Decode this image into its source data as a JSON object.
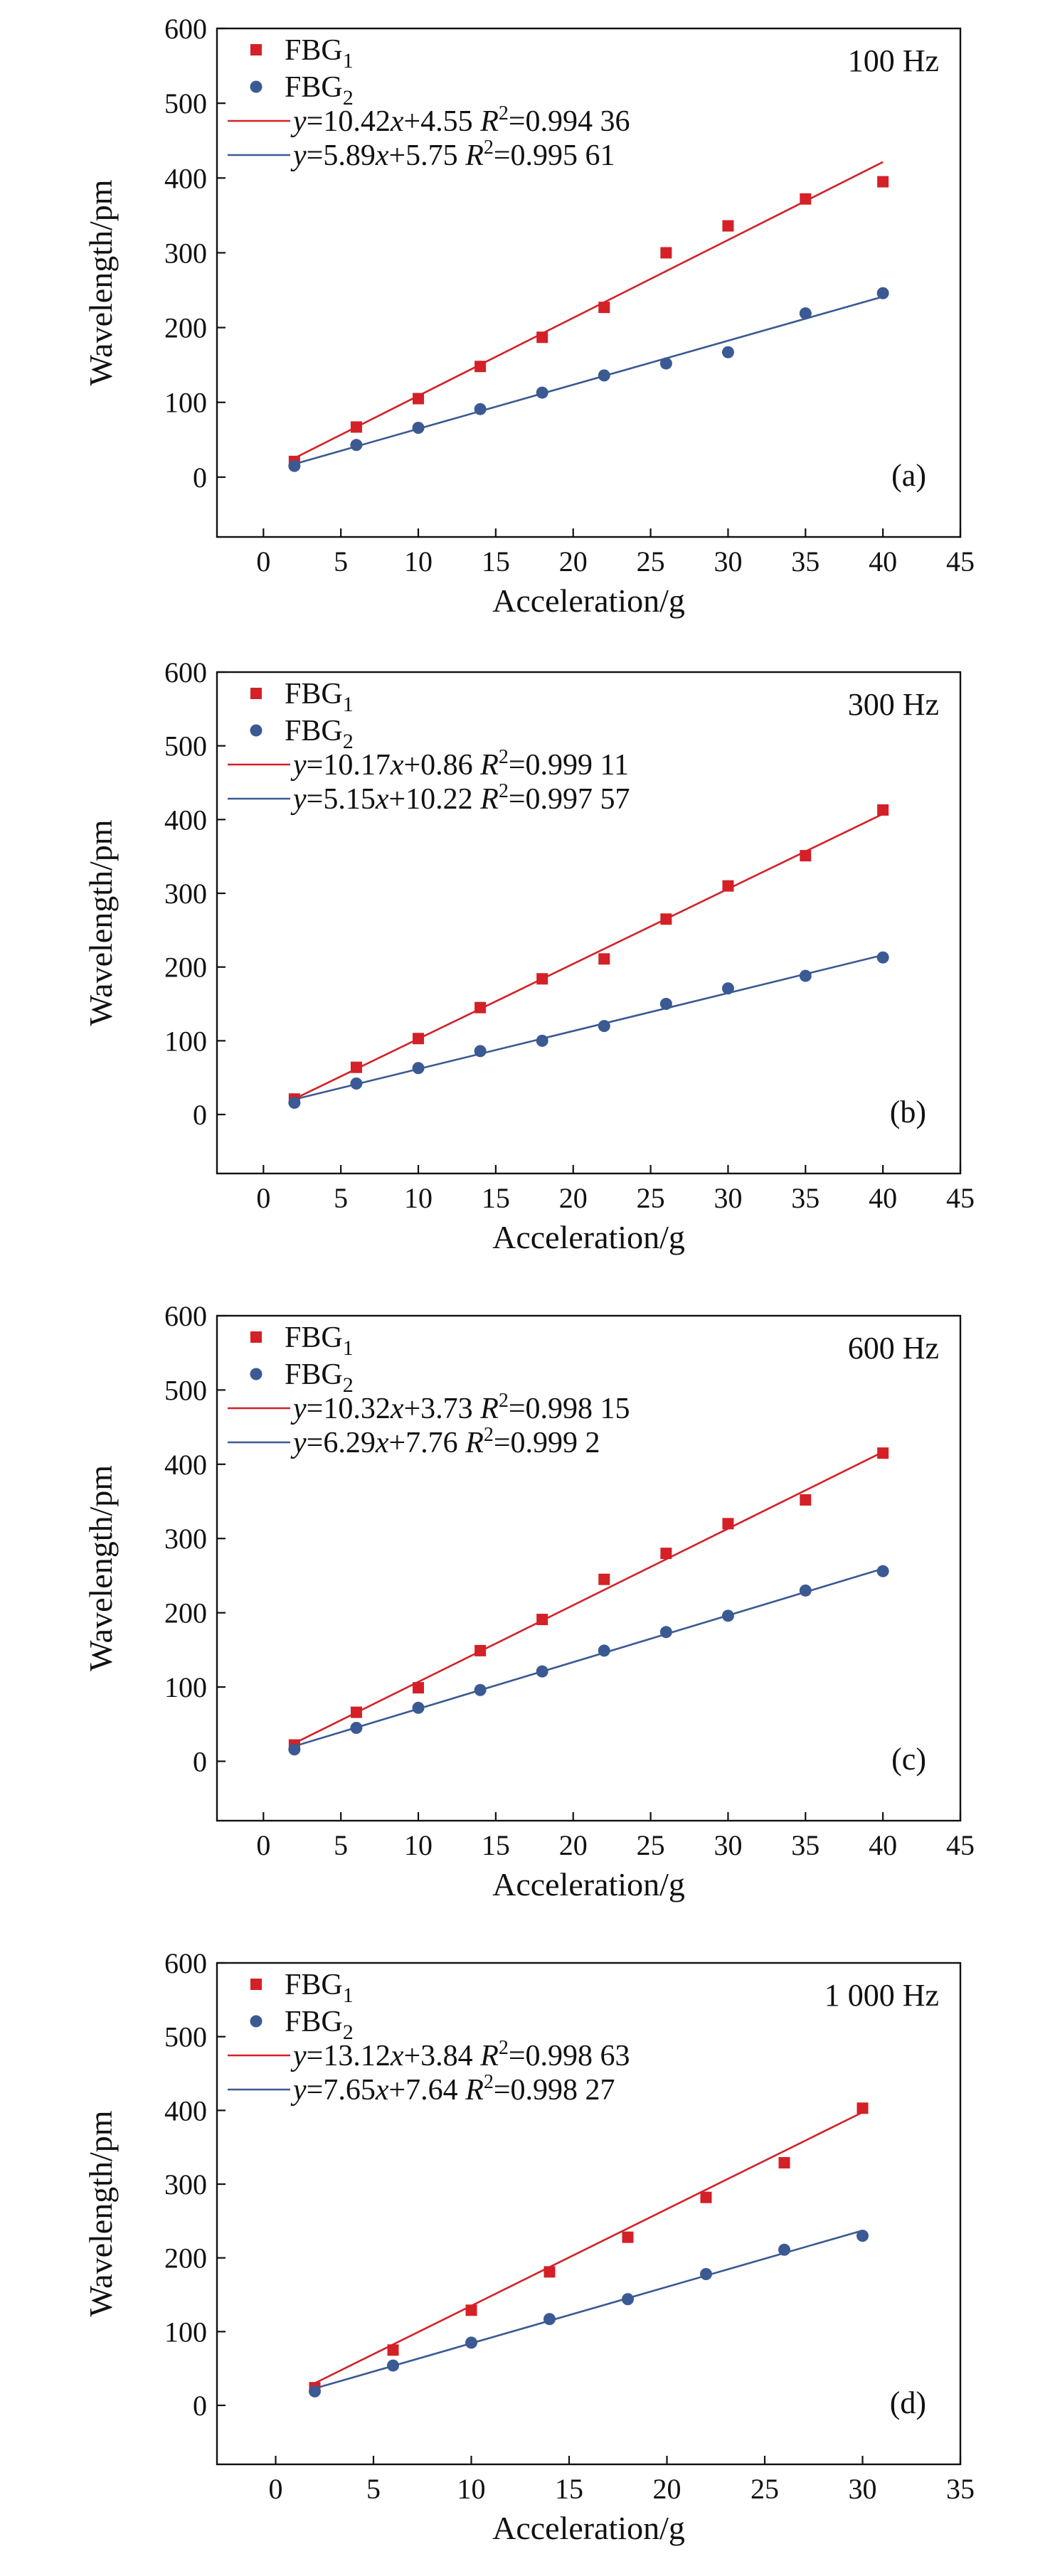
{
  "chart_data": [
    {
      "type": "scatter",
      "xlabel": "Acceleration/g",
      "ylabel": "Wavelength/pm",
      "xlim": [
        -3,
        45
      ],
      "ylim": [
        -80,
        600
      ],
      "xticks": [
        "0",
        "5",
        "10",
        "15",
        "20",
        "25",
        "30",
        "35",
        "40",
        "45"
      ],
      "yticks": [
        "0",
        "100",
        "200",
        "300",
        "400",
        "500",
        "600"
      ],
      "frequency": "100 Hz",
      "panel_label": "(a)",
      "legend_position": "top-left",
      "colors": {
        "FBG1": "#d42027",
        "FBG2": "#3b5a93"
      },
      "series": [
        {
          "name_base": "FBG",
          "name_sub": "1",
          "marker": "square",
          "x": [
            2,
            6,
            10,
            14,
            18,
            22,
            26,
            30,
            35,
            40
          ],
          "y": [
            21,
            67,
            105,
            148,
            187,
            227,
            300,
            336,
            372,
            395
          ]
        },
        {
          "name_base": "FBG",
          "name_sub": "2",
          "marker": "circle",
          "x": [
            2,
            6,
            10,
            14,
            18,
            22,
            26,
            30,
            35,
            40
          ],
          "y": [
            15,
            43,
            66,
            91,
            113,
            136,
            152,
            167,
            219,
            246
          ]
        }
      ],
      "fits": [
        {
          "series_index": 0,
          "slope": 10.42,
          "intercept": 4.55,
          "eq_y": "y",
          "eq_mid": "=10.42",
          "eq_x": "x",
          "eq_const": "+4.55",
          "eq_r": "R",
          "eq_sup": "2",
          "eq_val": "=0.994 36"
        },
        {
          "series_index": 1,
          "slope": 5.89,
          "intercept": 5.75,
          "eq_y": "y",
          "eq_mid": "=5.89",
          "eq_x": "x",
          "eq_const": "+5.75",
          "eq_r": "R",
          "eq_sup": "2",
          "eq_val": "=0.995 61"
        }
      ],
      "fit_range": [
        2,
        40
      ]
    },
    {
      "type": "scatter",
      "xlabel": "Acceleration/g",
      "ylabel": "Wavelength/pm",
      "xlim": [
        -3,
        45
      ],
      "ylim": [
        -80,
        600
      ],
      "xticks": [
        "0",
        "5",
        "10",
        "15",
        "20",
        "25",
        "30",
        "35",
        "40",
        "45"
      ],
      "yticks": [
        "0",
        "100",
        "200",
        "300",
        "400",
        "500",
        "600"
      ],
      "frequency": "300 Hz",
      "panel_label": "(b)",
      "legend_position": "top-left",
      "colors": {
        "FBG1": "#d42027",
        "FBG2": "#3b5a93"
      },
      "series": [
        {
          "name_base": "FBG",
          "name_sub": "1",
          "marker": "square",
          "x": [
            2,
            6,
            10,
            14,
            18,
            22,
            26,
            30,
            35,
            40
          ],
          "y": [
            21,
            64,
            103,
            145,
            184,
            211,
            265,
            310,
            351,
            413
          ]
        },
        {
          "name_base": "FBG",
          "name_sub": "2",
          "marker": "circle",
          "x": [
            2,
            6,
            10,
            14,
            18,
            22,
            26,
            30,
            35,
            40
          ],
          "y": [
            16,
            42,
            63,
            86,
            100,
            120,
            150,
            171,
            188,
            213
          ]
        }
      ],
      "fits": [
        {
          "series_index": 0,
          "slope": 10.17,
          "intercept": 0.86,
          "eq_y": "y",
          "eq_mid": "=10.17",
          "eq_x": "x",
          "eq_const": "+0.86",
          "eq_r": "R",
          "eq_sup": "2",
          "eq_val": "=0.999 11"
        },
        {
          "series_index": 1,
          "slope": 5.15,
          "intercept": 10.22,
          "eq_y": "y",
          "eq_mid": "=5.15",
          "eq_x": "x",
          "eq_const": "+10.22",
          "eq_r": "R",
          "eq_sup": "2",
          "eq_val": "=0.997 57"
        }
      ],
      "fit_range": [
        2,
        40
      ]
    },
    {
      "type": "scatter",
      "xlabel": "Acceleration/g",
      "ylabel": "Wavelength/pm",
      "xlim": [
        -3,
        45
      ],
      "ylim": [
        -80,
        600
      ],
      "xticks": [
        "0",
        "5",
        "10",
        "15",
        "20",
        "25",
        "30",
        "35",
        "40",
        "45"
      ],
      "yticks": [
        "0",
        "100",
        "200",
        "300",
        "400",
        "500",
        "600"
      ],
      "frequency": "600 Hz",
      "panel_label": "(c)",
      "legend_position": "top-left",
      "colors": {
        "FBG1": "#d42027",
        "FBG2": "#3b5a93"
      },
      "series": [
        {
          "name_base": "FBG",
          "name_sub": "1",
          "marker": "square",
          "x": [
            2,
            6,
            10,
            14,
            18,
            22,
            26,
            30,
            35,
            40
          ],
          "y": [
            22,
            66,
            99,
            149,
            191,
            245,
            280,
            320,
            352,
            415
          ]
        },
        {
          "name_base": "FBG",
          "name_sub": "2",
          "marker": "circle",
          "x": [
            2,
            6,
            10,
            14,
            18,
            22,
            26,
            30,
            35,
            40
          ],
          "y": [
            16,
            45,
            72,
            96,
            121,
            149,
            174,
            196,
            230,
            256
          ]
        }
      ],
      "fits": [
        {
          "series_index": 0,
          "slope": 10.32,
          "intercept": 3.73,
          "eq_y": "y",
          "eq_mid": "=10.32",
          "eq_x": "x",
          "eq_const": "+3.73",
          "eq_r": "R",
          "eq_sup": "2",
          "eq_val": "=0.998 15"
        },
        {
          "series_index": 1,
          "slope": 6.29,
          "intercept": 7.76,
          "eq_y": "y",
          "eq_mid": "=6.29",
          "eq_x": "x",
          "eq_const": "+7.76",
          "eq_r": "R",
          "eq_sup": "2",
          "eq_val": "=0.999 2"
        }
      ],
      "fit_range": [
        2,
        40
      ]
    },
    {
      "type": "scatter",
      "xlabel": "Acceleration/g",
      "ylabel": "Wavelength/pm",
      "xlim": [
        -3,
        35
      ],
      "ylim": [
        -80,
        600
      ],
      "xticks": [
        "0",
        "5",
        "10",
        "15",
        "20",
        "25",
        "30",
        "35"
      ],
      "yticks": [
        "0",
        "100",
        "200",
        "300",
        "400",
        "500",
        "600"
      ],
      "frequency": "1 000 Hz",
      "panel_label": "(d)",
      "legend_position": "top-left",
      "colors": {
        "FBG1": "#d42027",
        "FBG2": "#3b5a93"
      },
      "series": [
        {
          "name_base": "FBG",
          "name_sub": "1",
          "marker": "square",
          "x": [
            2,
            6,
            10,
            14,
            18,
            22,
            26,
            30
          ],
          "y": [
            24,
            75,
            129,
            181,
            228,
            282,
            329,
            403
          ]
        },
        {
          "name_base": "FBG",
          "name_sub": "2",
          "marker": "circle",
          "x": [
            2,
            6,
            10,
            14,
            18,
            22,
            26,
            30
          ],
          "y": [
            19,
            54,
            85,
            117,
            144,
            178,
            211,
            230
          ]
        }
      ],
      "fits": [
        {
          "series_index": 0,
          "slope": 13.12,
          "intercept": 3.84,
          "eq_y": "y",
          "eq_mid": "=13.12",
          "eq_x": "x",
          "eq_const": "+3.84",
          "eq_r": "R",
          "eq_sup": "2",
          "eq_val": "=0.998 63"
        },
        {
          "series_index": 1,
          "slope": 7.65,
          "intercept": 7.64,
          "eq_y": "y",
          "eq_mid": "=7.65",
          "eq_x": "x",
          "eq_const": "+7.64",
          "eq_r": "R",
          "eq_sup": "2",
          "eq_val": "=0.998 27"
        }
      ],
      "fit_range": [
        2,
        30
      ]
    }
  ]
}
